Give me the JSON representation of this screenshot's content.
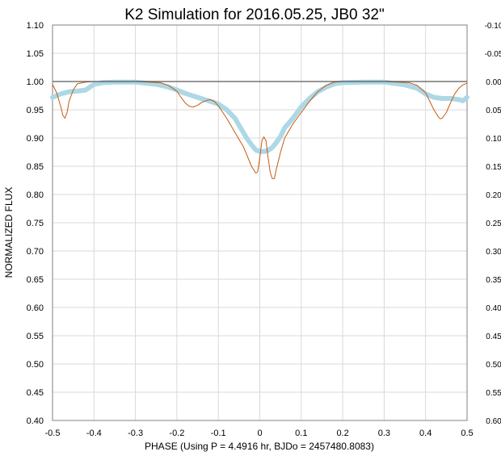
{
  "chart_data": {
    "type": "line",
    "title": "K2 Simulation for 2016.05.25, JB0 32\"",
    "xlabel": "PHASE (Using P = 4.4916 hr, BJDo = 2457480.8083)",
    "ylabel": "NORMALIZED FLUX",
    "xlim": [
      -0.5,
      0.5
    ],
    "ylim": [
      0.4,
      1.1
    ],
    "y2lim": [
      -0.1,
      0.6
    ],
    "x_ticks": [
      "-0.5",
      "-0.4",
      "-0.3",
      "-0.2",
      "-0.1",
      "0",
      "0.1",
      "0.2",
      "0.3",
      "0.4",
      "0.5"
    ],
    "y_ticks": [
      "1.10",
      "1.05",
      "1.00",
      "0.95",
      "0.90",
      "0.85",
      "0.80",
      "0.75",
      "0.70",
      "0.65",
      "0.60",
      "0.55",
      "0.50",
      "0.45",
      "0.40"
    ],
    "y2_ticks": [
      "-0.10",
      "-0.05",
      "0.00",
      "0.05",
      "0.10",
      "0.15",
      "0.20",
      "0.25",
      "0.30",
      "0.35",
      "0.40",
      "0.45",
      "0.50",
      "0.55",
      "0.60"
    ],
    "grid": true,
    "legend": "none",
    "reference_line_y": 1.0,
    "series": [
      {
        "color": "#c55a11",
        "width": 1,
        "points": [
          [
            -0.5,
            0.995
          ],
          [
            -0.49,
            0.98
          ],
          [
            -0.48,
            0.955
          ],
          [
            -0.475,
            0.94
          ],
          [
            -0.47,
            0.935
          ],
          [
            -0.465,
            0.945
          ],
          [
            -0.46,
            0.965
          ],
          [
            -0.45,
            0.985
          ],
          [
            -0.44,
            0.996
          ],
          [
            -0.42,
            0.999
          ],
          [
            -0.4,
            1.0
          ],
          [
            -0.3,
            1.0
          ],
          [
            -0.24,
            0.998
          ],
          [
            -0.22,
            0.993
          ],
          [
            -0.2,
            0.983
          ],
          [
            -0.19,
            0.972
          ],
          [
            -0.18,
            0.962
          ],
          [
            -0.17,
            0.956
          ],
          [
            -0.16,
            0.955
          ],
          [
            -0.15,
            0.958
          ],
          [
            -0.14,
            0.963
          ],
          [
            -0.13,
            0.966
          ],
          [
            -0.12,
            0.968
          ],
          [
            -0.11,
            0.965
          ],
          [
            -0.1,
            0.957
          ],
          [
            -0.08,
            0.935
          ],
          [
            -0.06,
            0.91
          ],
          [
            -0.04,
            0.885
          ],
          [
            -0.03,
            0.868
          ],
          [
            -0.02,
            0.85
          ],
          [
            -0.01,
            0.838
          ],
          [
            -0.005,
            0.84
          ],
          [
            0.0,
            0.865
          ],
          [
            0.005,
            0.895
          ],
          [
            0.01,
            0.902
          ],
          [
            0.015,
            0.895
          ],
          [
            0.02,
            0.865
          ],
          [
            0.025,
            0.84
          ],
          [
            0.03,
            0.828
          ],
          [
            0.035,
            0.828
          ],
          [
            0.04,
            0.845
          ],
          [
            0.05,
            0.875
          ],
          [
            0.06,
            0.9
          ],
          [
            0.08,
            0.925
          ],
          [
            0.1,
            0.945
          ],
          [
            0.12,
            0.965
          ],
          [
            0.14,
            0.982
          ],
          [
            0.16,
            0.993
          ],
          [
            0.18,
            0.999
          ],
          [
            0.2,
            1.0
          ],
          [
            0.3,
            1.0
          ],
          [
            0.36,
            0.998
          ],
          [
            0.38,
            0.993
          ],
          [
            0.4,
            0.98
          ],
          [
            0.41,
            0.965
          ],
          [
            0.42,
            0.95
          ],
          [
            0.43,
            0.938
          ],
          [
            0.435,
            0.934
          ],
          [
            0.44,
            0.935
          ],
          [
            0.45,
            0.945
          ],
          [
            0.46,
            0.962
          ],
          [
            0.47,
            0.978
          ],
          [
            0.48,
            0.988
          ],
          [
            0.49,
            0.994
          ],
          [
            0.5,
            0.997
          ]
        ]
      },
      {
        "color": "#add8e6",
        "width": 6,
        "points": [
          [
            -0.5,
            0.972
          ],
          [
            -0.48,
            0.978
          ],
          [
            -0.46,
            0.982
          ],
          [
            -0.44,
            0.983
          ],
          [
            -0.42,
            0.985
          ],
          [
            -0.41,
            0.99
          ],
          [
            -0.4,
            0.995
          ],
          [
            -0.38,
            0.998
          ],
          [
            -0.35,
            0.999
          ],
          [
            -0.3,
            0.999
          ],
          [
            -0.25,
            0.995
          ],
          [
            -0.22,
            0.99
          ],
          [
            -0.2,
            0.985
          ],
          [
            -0.18,
            0.979
          ],
          [
            -0.15,
            0.972
          ],
          [
            -0.12,
            0.965
          ],
          [
            -0.1,
            0.96
          ],
          [
            -0.08,
            0.95
          ],
          [
            -0.06,
            0.935
          ],
          [
            -0.04,
            0.91
          ],
          [
            -0.03,
            0.898
          ],
          [
            -0.02,
            0.888
          ],
          [
            -0.01,
            0.879
          ],
          [
            0.0,
            0.876
          ],
          [
            0.01,
            0.876
          ],
          [
            0.02,
            0.878
          ],
          [
            0.03,
            0.883
          ],
          [
            0.04,
            0.892
          ],
          [
            0.05,
            0.903
          ],
          [
            0.06,
            0.918
          ],
          [
            0.08,
            0.935
          ],
          [
            0.1,
            0.955
          ],
          [
            0.12,
            0.97
          ],
          [
            0.14,
            0.982
          ],
          [
            0.16,
            0.99
          ],
          [
            0.18,
            0.996
          ],
          [
            0.2,
            0.998
          ],
          [
            0.25,
            0.999
          ],
          [
            0.3,
            0.999
          ],
          [
            0.35,
            0.994
          ],
          [
            0.38,
            0.988
          ],
          [
            0.4,
            0.978
          ],
          [
            0.42,
            0.972
          ],
          [
            0.44,
            0.97
          ],
          [
            0.46,
            0.97
          ],
          [
            0.48,
            0.968
          ],
          [
            0.49,
            0.966
          ],
          [
            0.5,
            0.972
          ]
        ]
      }
    ]
  }
}
